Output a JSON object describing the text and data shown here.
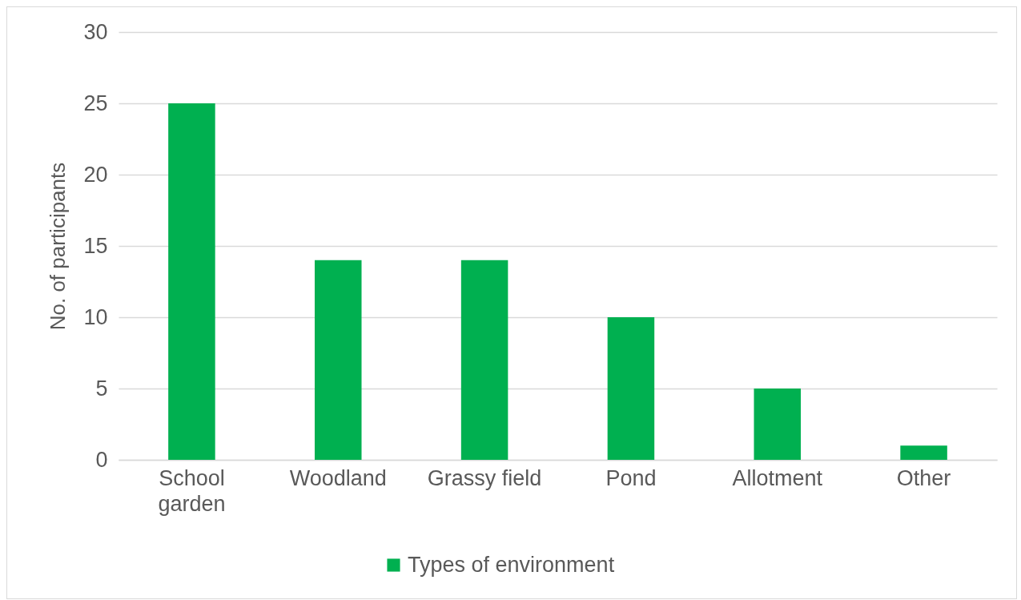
{
  "chart_data": {
    "type": "bar",
    "ylabel": "No. of participants",
    "categories": [
      "School garden",
      "Woodland",
      "Grassy field",
      "Pond",
      "Allotment",
      "Other"
    ],
    "series": [
      {
        "name": "Types of environment",
        "color": "#00b050",
        "values": [
          25,
          14,
          14,
          10,
          5,
          1
        ]
      }
    ],
    "ylim": [
      0,
      30
    ],
    "yticks": [
      0,
      5,
      10,
      15,
      20,
      25,
      30
    ],
    "grid": "y",
    "legend": "bottom"
  }
}
